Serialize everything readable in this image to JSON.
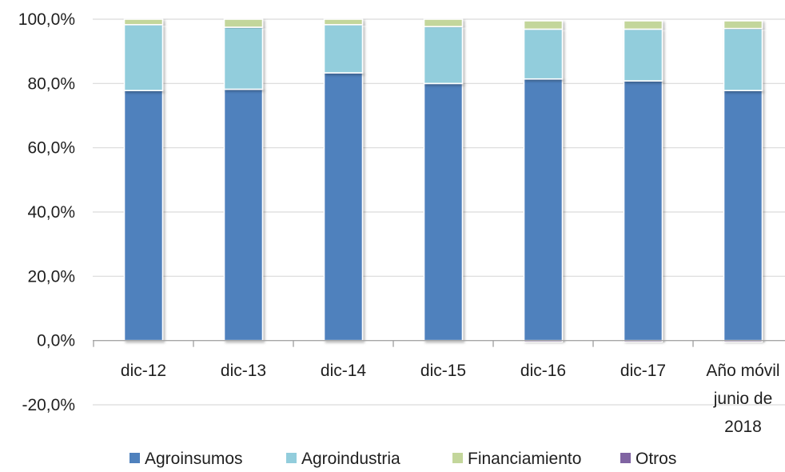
{
  "chart_data": {
    "type": "bar",
    "stacked": true,
    "categories": [
      [
        "dic-12"
      ],
      [
        "dic-13"
      ],
      [
        "dic-14"
      ],
      [
        "dic-15"
      ],
      [
        "dic-16"
      ],
      [
        "dic-17"
      ],
      [
        "Año móvil",
        "junio de",
        "2018"
      ]
    ],
    "series": [
      {
        "name": "Agroinsumos",
        "color": "#4f81bd",
        "values": [
          77.8,
          78.2,
          83.3,
          80.0,
          81.4,
          80.8,
          77.8
        ]
      },
      {
        "name": "Agroindustria",
        "color": "#92cddc",
        "values": [
          20.5,
          19.3,
          15.0,
          17.7,
          15.5,
          16.1,
          19.3
        ]
      },
      {
        "name": "Financiamiento",
        "color": "#c3d69b",
        "values": [
          1.7,
          2.5,
          1.7,
          2.3,
          2.6,
          2.6,
          2.4
        ]
      },
      {
        "name": "Otros",
        "color": "#8064a2",
        "values": [
          0.0,
          0.0,
          0.0,
          0.0,
          -0.5,
          -0.5,
          -0.5
        ]
      }
    ],
    "y_ticks": [
      "100,0%",
      "80,0%",
      "60,0%",
      "40,0%",
      "20,0%",
      "0,0%",
      "-20,0%"
    ],
    "y_tick_values": [
      100,
      80,
      60,
      40,
      20,
      0,
      -20
    ],
    "ylim": [
      -20,
      100
    ],
    "grid": true,
    "legend_position": "bottom"
  }
}
